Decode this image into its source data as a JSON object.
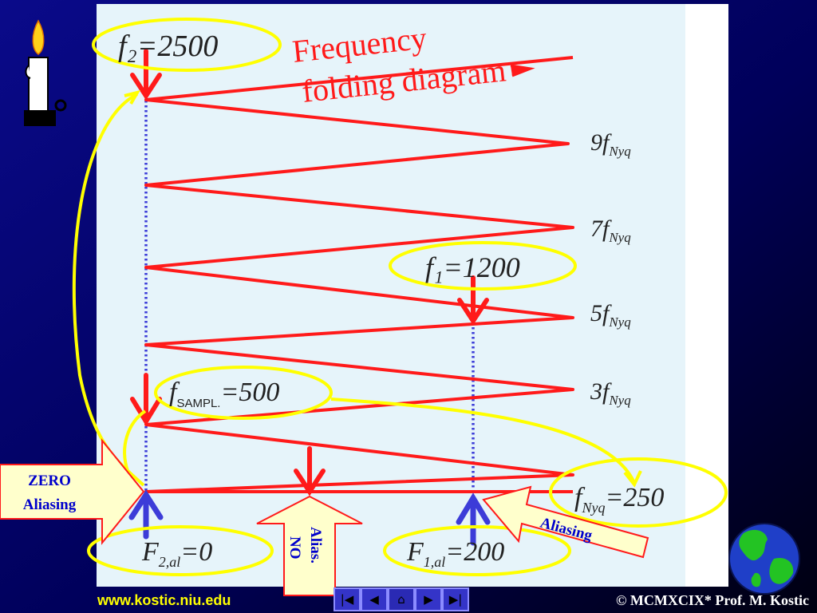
{
  "diagram": {
    "title_line1": "Frequency",
    "title_line2": "folding diagram",
    "f2_label": "f₂=2500",
    "f1_label": "f₁=1200",
    "fsampl_main": "f",
    "fsampl_sub": "SAMPL.",
    "fsampl_value": "=500",
    "nyq_main": "f",
    "nyq_sub": "Nyq",
    "nyq_value": "=250",
    "multiple_labels": [
      {
        "coef": "9f",
        "sub": "Nyq"
      },
      {
        "coef": "7f",
        "sub": "Nyq"
      },
      {
        "coef": "5f",
        "sub": "Nyq"
      },
      {
        "coef": "3f",
        "sub": "Nyq"
      }
    ],
    "alias2_main": "F",
    "alias2_sub": "2,al",
    "alias2_value": "=0",
    "alias1_main": "F",
    "alias1_sub": "1,al",
    "alias1_value": "=200"
  },
  "callouts": {
    "zero_line1": "ZERO",
    "zero_line2": "Aliasing",
    "no_line1": "NO",
    "no_line2": "Alias.",
    "aliasing": "Aliasing"
  },
  "footer": {
    "url": "www.kostic.niu.edu",
    "copyright": "© MCMXCIX* Prof. M. Kostic"
  },
  "nav": {
    "first": "|◀",
    "prev": "◀",
    "home": "⌂",
    "next": "▶",
    "last": "▶|"
  },
  "colors": {
    "panel": "#e6f4fa",
    "wave": "#ff1a1a",
    "highlight": "#ffff00",
    "dotted": "#3c3cd8",
    "callout_fill": "#ffffcc",
    "callout_stroke": "#ff1a1a"
  }
}
